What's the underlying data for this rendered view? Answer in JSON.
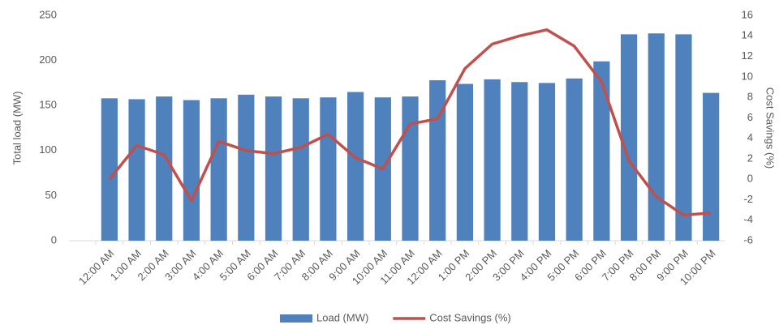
{
  "chart_data": {
    "type": "bar",
    "y_label": "Total load (MW)",
    "y2_label": "Cost Savings (%)",
    "categories": [
      "12:00 AM",
      "1:00 AM",
      "2:00 AM",
      "3:00 AM",
      "4:00 AM",
      "5:00 AM",
      "6:00 AM",
      "7:00 AM",
      "8:00 AM",
      "9:00 AM",
      "10:00 AM",
      "11:00 AM",
      "12:00 AM",
      "1:00 PM",
      "2:00 PM",
      "3:00 PM",
      "4:00 PM",
      "5:00 PM",
      "6:00 PM",
      "7:00 PM",
      "8:00 PM",
      "9:00 PM",
      "10:00 PM"
    ],
    "series": [
      {
        "name": "Load (MW)",
        "type": "bar",
        "color": "#4f81bd",
        "values": [
          158,
          157,
          160,
          156,
          158,
          162,
          160,
          158,
          159,
          165,
          159,
          160,
          178,
          174,
          179,
          176,
          175,
          180,
          199,
          229,
          230,
          229,
          164
        ]
      },
      {
        "name": "Cost Savings (%)",
        "type": "line",
        "axis": "y2",
        "color": "#c0504d",
        "values": [
          0,
          3.3,
          2.4,
          -2.1,
          3.7,
          2.8,
          2.5,
          3.1,
          4.4,
          2.1,
          1.0,
          5.4,
          5.9,
          10.8,
          13.2,
          14.0,
          14.6,
          13.0,
          9.5,
          1.8,
          -1.7,
          -3.5,
          -3.3
        ]
      }
    ],
    "ylim": [
      0,
      250
    ],
    "yticks": [
      0,
      50,
      100,
      150,
      200,
      250
    ],
    "y2lim": [
      -6,
      16
    ],
    "y2ticks": [
      -6,
      -4,
      -2,
      0,
      2,
      4,
      6,
      8,
      10,
      12,
      14,
      16
    ],
    "grid": false,
    "legend": "bottom"
  }
}
